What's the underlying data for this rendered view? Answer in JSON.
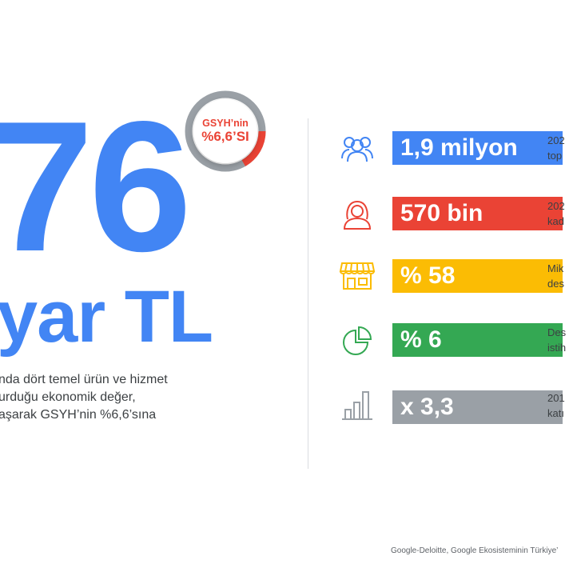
{
  "hero": {
    "number": "76",
    "unit": "yar TL",
    "description": [
      "nda dört temel ürün ve hizmet",
      "urduğu ekonomik değer,",
      "aşarak GSYH’nin %6,6’sına"
    ]
  },
  "badge": {
    "line1": "GSYH’nin",
    "line2": "%6,6’SI",
    "fraction": 0.066,
    "ring_color": "#ea4335",
    "track_color": "#9aa0a6"
  },
  "rows": [
    {
      "icon": "people-group-icon",
      "value": "1,9 milyon",
      "color": "#4285f4",
      "text": [
        "202",
        "top"
      ]
    },
    {
      "icon": "woman-icon",
      "value": "570 bin",
      "color": "#ea4335",
      "text": [
        "202",
        "kad"
      ]
    },
    {
      "icon": "storefront-icon",
      "value": "% 58",
      "color": "#fbbc04",
      "text": [
        "Mik",
        "des"
      ]
    },
    {
      "icon": "pie-chart-icon",
      "value": "% 6",
      "color": "#34a853",
      "text": [
        "Des",
        "istih"
      ]
    },
    {
      "icon": "bar-chart-icon",
      "value": "x 3,3",
      "color": "#9aa0a6",
      "text": [
        "201",
        "katı"
      ]
    }
  ],
  "footer": "Google-Deloitte, Google Ekosisteminin Türkiye’"
}
